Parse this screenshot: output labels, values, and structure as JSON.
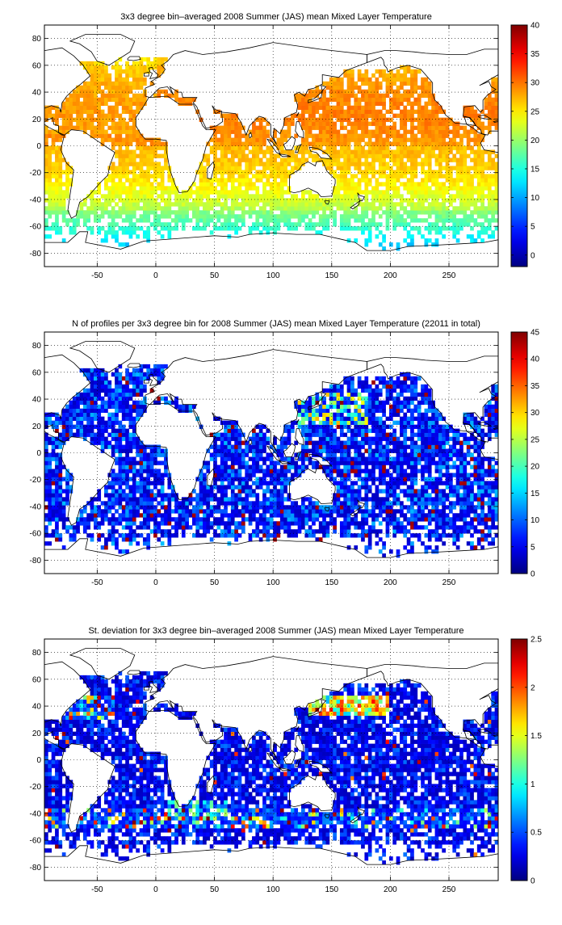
{
  "chart_data": [
    {
      "type": "heatmap",
      "title": "3x3 degree bin–averaged 2008 Summer (JAS) mean Mixed Layer Temperature",
      "xlabel": "",
      "ylabel": "",
      "xlim": [
        -95,
        292
      ],
      "ylim": [
        -90,
        90
      ],
      "x_ticks": [
        "-50",
        "0",
        "50",
        "100",
        "150",
        "200",
        "250"
      ],
      "y_ticks": [
        "80",
        "60",
        "40",
        "20",
        "0",
        "-20",
        "-40",
        "-60",
        "-80"
      ],
      "grid": true,
      "bin_size_deg": 3,
      "colorbar": {
        "range": [
          -2,
          40
        ],
        "ticks": [
          "40",
          "35",
          "30",
          "25",
          "20",
          "15",
          "10",
          "5",
          "0"
        ],
        "colormap": "jet"
      },
      "field": "temperature"
    },
    {
      "type": "heatmap",
      "title": "N of profiles per 3x3 degree bin for 2008 Summer (JAS) mean Mixed Layer Temperature  (22011 in total)",
      "xlabel": "",
      "ylabel": "",
      "xlim": [
        -95,
        292
      ],
      "ylim": [
        -90,
        90
      ],
      "x_ticks": [
        "-50",
        "0",
        "50",
        "100",
        "150",
        "200",
        "250"
      ],
      "y_ticks": [
        "80",
        "60",
        "40",
        "20",
        "0",
        "-20",
        "-40",
        "-60",
        "-80"
      ],
      "grid": true,
      "bin_size_deg": 3,
      "colorbar": {
        "range": [
          0,
          45
        ],
        "ticks": [
          "45",
          "40",
          "35",
          "30",
          "25",
          "20",
          "15",
          "10",
          "5",
          "0"
        ],
        "colormap": "jet"
      },
      "field": "count"
    },
    {
      "type": "heatmap",
      "title": "St. deviation for 3x3 degree bin–averaged 2008 Summer (JAS) mean Mixed Layer Temperature",
      "xlabel": "",
      "ylabel": "",
      "xlim": [
        -95,
        292
      ],
      "ylim": [
        -90,
        90
      ],
      "x_ticks": [
        "-50",
        "0",
        "50",
        "100",
        "150",
        "200",
        "250"
      ],
      "y_ticks": [
        "80",
        "60",
        "40",
        "20",
        "0",
        "-20",
        "-40",
        "-60",
        "-80"
      ],
      "grid": true,
      "bin_size_deg": 3,
      "colorbar": {
        "range": [
          0,
          2.5
        ],
        "ticks": [
          "2.5",
          "2",
          "1.5",
          "1",
          "0.5",
          "0"
        ],
        "colormap": "jet"
      },
      "field": "stdev"
    }
  ]
}
